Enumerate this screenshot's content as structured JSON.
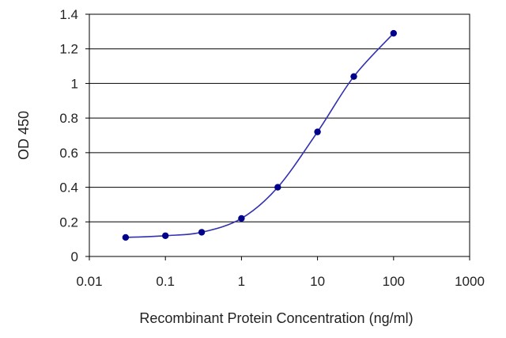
{
  "chart_data": {
    "type": "line",
    "title": "",
    "xlabel": "Recombinant Protein Concentration (ng/ml)",
    "ylabel": "OD 450",
    "x_scale": "log",
    "xlim": [
      0.01,
      1000
    ],
    "ylim": [
      0,
      1.4
    ],
    "x_ticks": [
      "0.01",
      "0.1",
      "1",
      "10",
      "100",
      "1000"
    ],
    "y_ticks": [
      "0",
      "0.2",
      "0.4",
      "0.6",
      "0.8",
      "1",
      "1.2",
      "1.4"
    ],
    "grid": "horizontal",
    "legend": "none",
    "series": [
      {
        "color": "#00008b",
        "x": [
          0.03,
          0.1,
          0.3,
          1,
          3,
          10,
          30,
          100
        ],
        "y": [
          0.11,
          0.12,
          0.14,
          0.22,
          0.4,
          0.72,
          1.04,
          1.29
        ]
      }
    ]
  }
}
